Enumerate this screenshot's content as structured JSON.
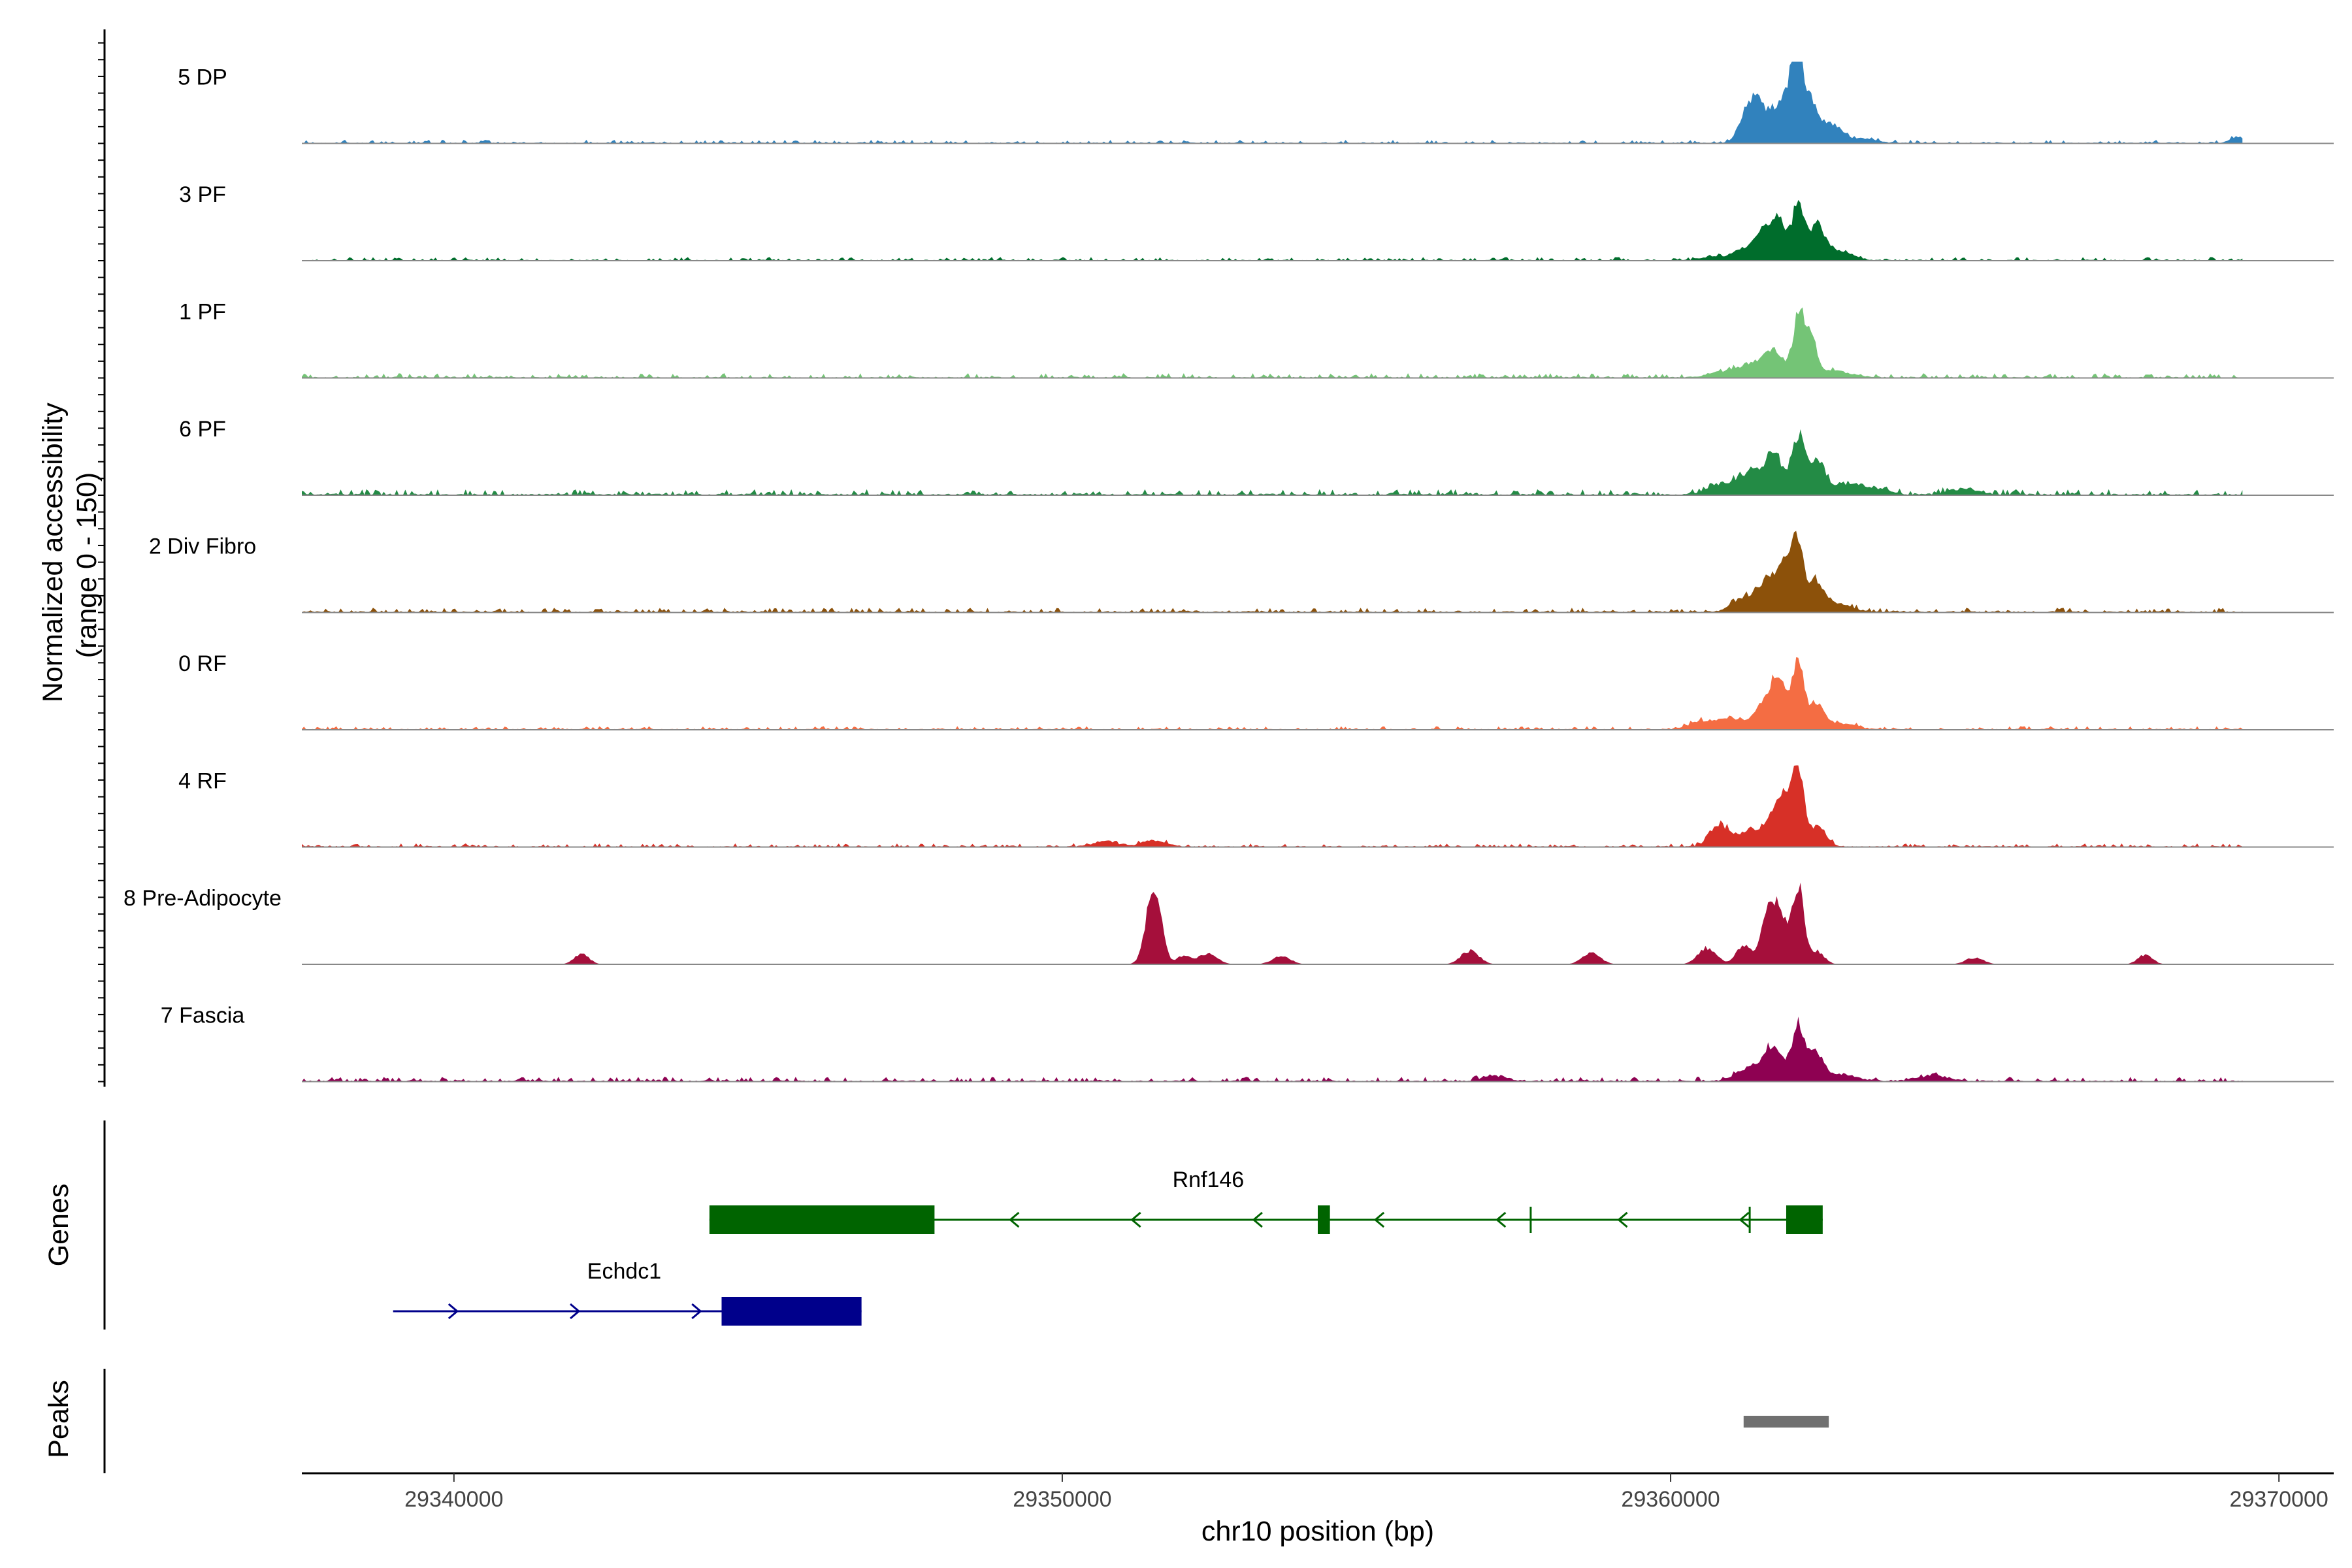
{
  "chart_data": {
    "type": "area",
    "title": "",
    "xlabel": "chr10 position (bp)",
    "ylabel": "Normalized accessibility",
    "ylabel_range": "(range 0 - 150)",
    "xlim": [
      29337500,
      29370900
    ],
    "ylim": [
      0,
      150
    ],
    "x_ticks": [
      {
        "value": 29340000,
        "label": "29340000"
      },
      {
        "value": 29350000,
        "label": "29350000"
      },
      {
        "value": 29360000,
        "label": "29360000"
      },
      {
        "value": 29370000,
        "label": "29370000"
      }
    ],
    "track_start": 29337500,
    "track_end": 29369400,
    "series": [
      {
        "name": "5 DP",
        "color": "#3182BD",
        "baseline": 3,
        "peaks": [
          [
            29361300,
            60,
            150
          ],
          [
            29361500,
            45,
            160
          ],
          [
            29361800,
            55,
            130
          ],
          [
            29362000,
            80,
            110
          ],
          [
            29362100,
            120,
            90
          ],
          [
            29362300,
            60,
            110
          ],
          [
            29362600,
            35,
            200
          ],
          [
            29363200,
            8,
            200
          ],
          [
            29369300,
            10,
            120
          ]
        ]
      },
      {
        "name": "3 PF",
        "color": "#006D2C",
        "baseline": 3,
        "peaks": [
          [
            29360700,
            8,
            200
          ],
          [
            29361300,
            25,
            200
          ],
          [
            29361600,
            45,
            150
          ],
          [
            29361800,
            55,
            120
          ],
          [
            29362100,
            100,
            100
          ],
          [
            29362400,
            55,
            120
          ],
          [
            29362700,
            20,
            250
          ]
        ]
      },
      {
        "name": "1 PF",
        "color": "#74C476",
        "baseline": 4,
        "peaks": [
          [
            29360800,
            10,
            200
          ],
          [
            29361300,
            25,
            200
          ],
          [
            29361700,
            50,
            150
          ],
          [
            29362100,
            115,
            90
          ],
          [
            29362300,
            70,
            100
          ],
          [
            29362700,
            12,
            250
          ]
        ]
      },
      {
        "name": "6 PF",
        "color": "#238B45",
        "baseline": 5,
        "peaks": [
          [
            29360800,
            18,
            200
          ],
          [
            29361300,
            40,
            200
          ],
          [
            29361700,
            70,
            150
          ],
          [
            29362100,
            110,
            100
          ],
          [
            29362400,
            60,
            120
          ],
          [
            29362800,
            18,
            250
          ],
          [
            29363300,
            12,
            250
          ],
          [
            29364800,
            10,
            250
          ]
        ]
      },
      {
        "name": "2 Div Fibro",
        "color": "#8C510A",
        "baseline": 4,
        "peaks": [
          [
            29361200,
            25,
            200
          ],
          [
            29361600,
            60,
            150
          ],
          [
            29361900,
            85,
            120
          ],
          [
            29362100,
            120,
            90
          ],
          [
            29362400,
            50,
            120
          ],
          [
            29362700,
            15,
            250
          ]
        ]
      },
      {
        "name": "0 RF",
        "color": "#F46D43",
        "baseline": 3,
        "peaks": [
          [
            29360500,
            15,
            200
          ],
          [
            29360900,
            18,
            150
          ],
          [
            29361300,
            15,
            200
          ],
          [
            29361600,
            50,
            150
          ],
          [
            29361800,
            75,
            120
          ],
          [
            29362100,
            130,
            90
          ],
          [
            29362400,
            45,
            120
          ],
          [
            29362800,
            10,
            250
          ]
        ]
      },
      {
        "name": "4 RF",
        "color": "#D73027",
        "baseline": 3,
        "peaks": [
          [
            29350700,
            10,
            200
          ],
          [
            29351500,
            12,
            200
          ],
          [
            29360800,
            40,
            150
          ],
          [
            29361300,
            30,
            200
          ],
          [
            29361700,
            50,
            150
          ],
          [
            29361900,
            75,
            120
          ],
          [
            29362100,
            125,
            90
          ],
          [
            29362400,
            35,
            150
          ]
        ]
      },
      {
        "name": "8 Pre-Adipocyte",
        "color": "#A50F3B",
        "baseline": 0,
        "peaks": [
          [
            29342100,
            20,
            120
          ],
          [
            29351500,
            150,
            120
          ],
          [
            29352000,
            15,
            120
          ],
          [
            29352400,
            20,
            150
          ],
          [
            29353600,
            15,
            150
          ],
          [
            29356700,
            25,
            150
          ],
          [
            29358700,
            20,
            150
          ],
          [
            29360600,
            30,
            150
          ],
          [
            29361200,
            35,
            120
          ],
          [
            29361600,
            80,
            120
          ],
          [
            29361800,
            90,
            120
          ],
          [
            29362100,
            150,
            90
          ],
          [
            29362400,
            25,
            120
          ],
          [
            29365000,
            12,
            150
          ],
          [
            29367800,
            18,
            120
          ]
        ]
      },
      {
        "name": "7 Fascia",
        "color": "#8E0152",
        "baseline": 4,
        "peaks": [
          [
            29357100,
            10,
            200
          ],
          [
            29361300,
            25,
            200
          ],
          [
            29361700,
            65,
            150
          ],
          [
            29362100,
            105,
            100
          ],
          [
            29362400,
            50,
            120
          ],
          [
            29362800,
            12,
            250
          ],
          [
            29364300,
            10,
            250
          ]
        ]
      }
    ],
    "genes": [
      {
        "name": "Rnf146",
        "color": "#006400",
        "strand": "-",
        "start": 29344200,
        "end": 29362500,
        "exons": [
          [
            29344200,
            29347900
          ],
          [
            29354200,
            29354400
          ],
          [
            29361900,
            29362500
          ]
        ],
        "marks": [
          29357700,
          29361300
        ]
      },
      {
        "name": "Echdc1",
        "color": "#00008B",
        "strand": "+",
        "start": 29339000,
        "end": 29346700,
        "exons": [
          [
            29344400,
            29346700
          ]
        ],
        "marks": []
      }
    ],
    "gene_panel_label": "Genes",
    "peak_panel_label": "Peaks",
    "peaks": [
      {
        "start": 29361200,
        "end": 29362600,
        "color": "#707070"
      }
    ],
    "baseline_color": "#888888"
  }
}
